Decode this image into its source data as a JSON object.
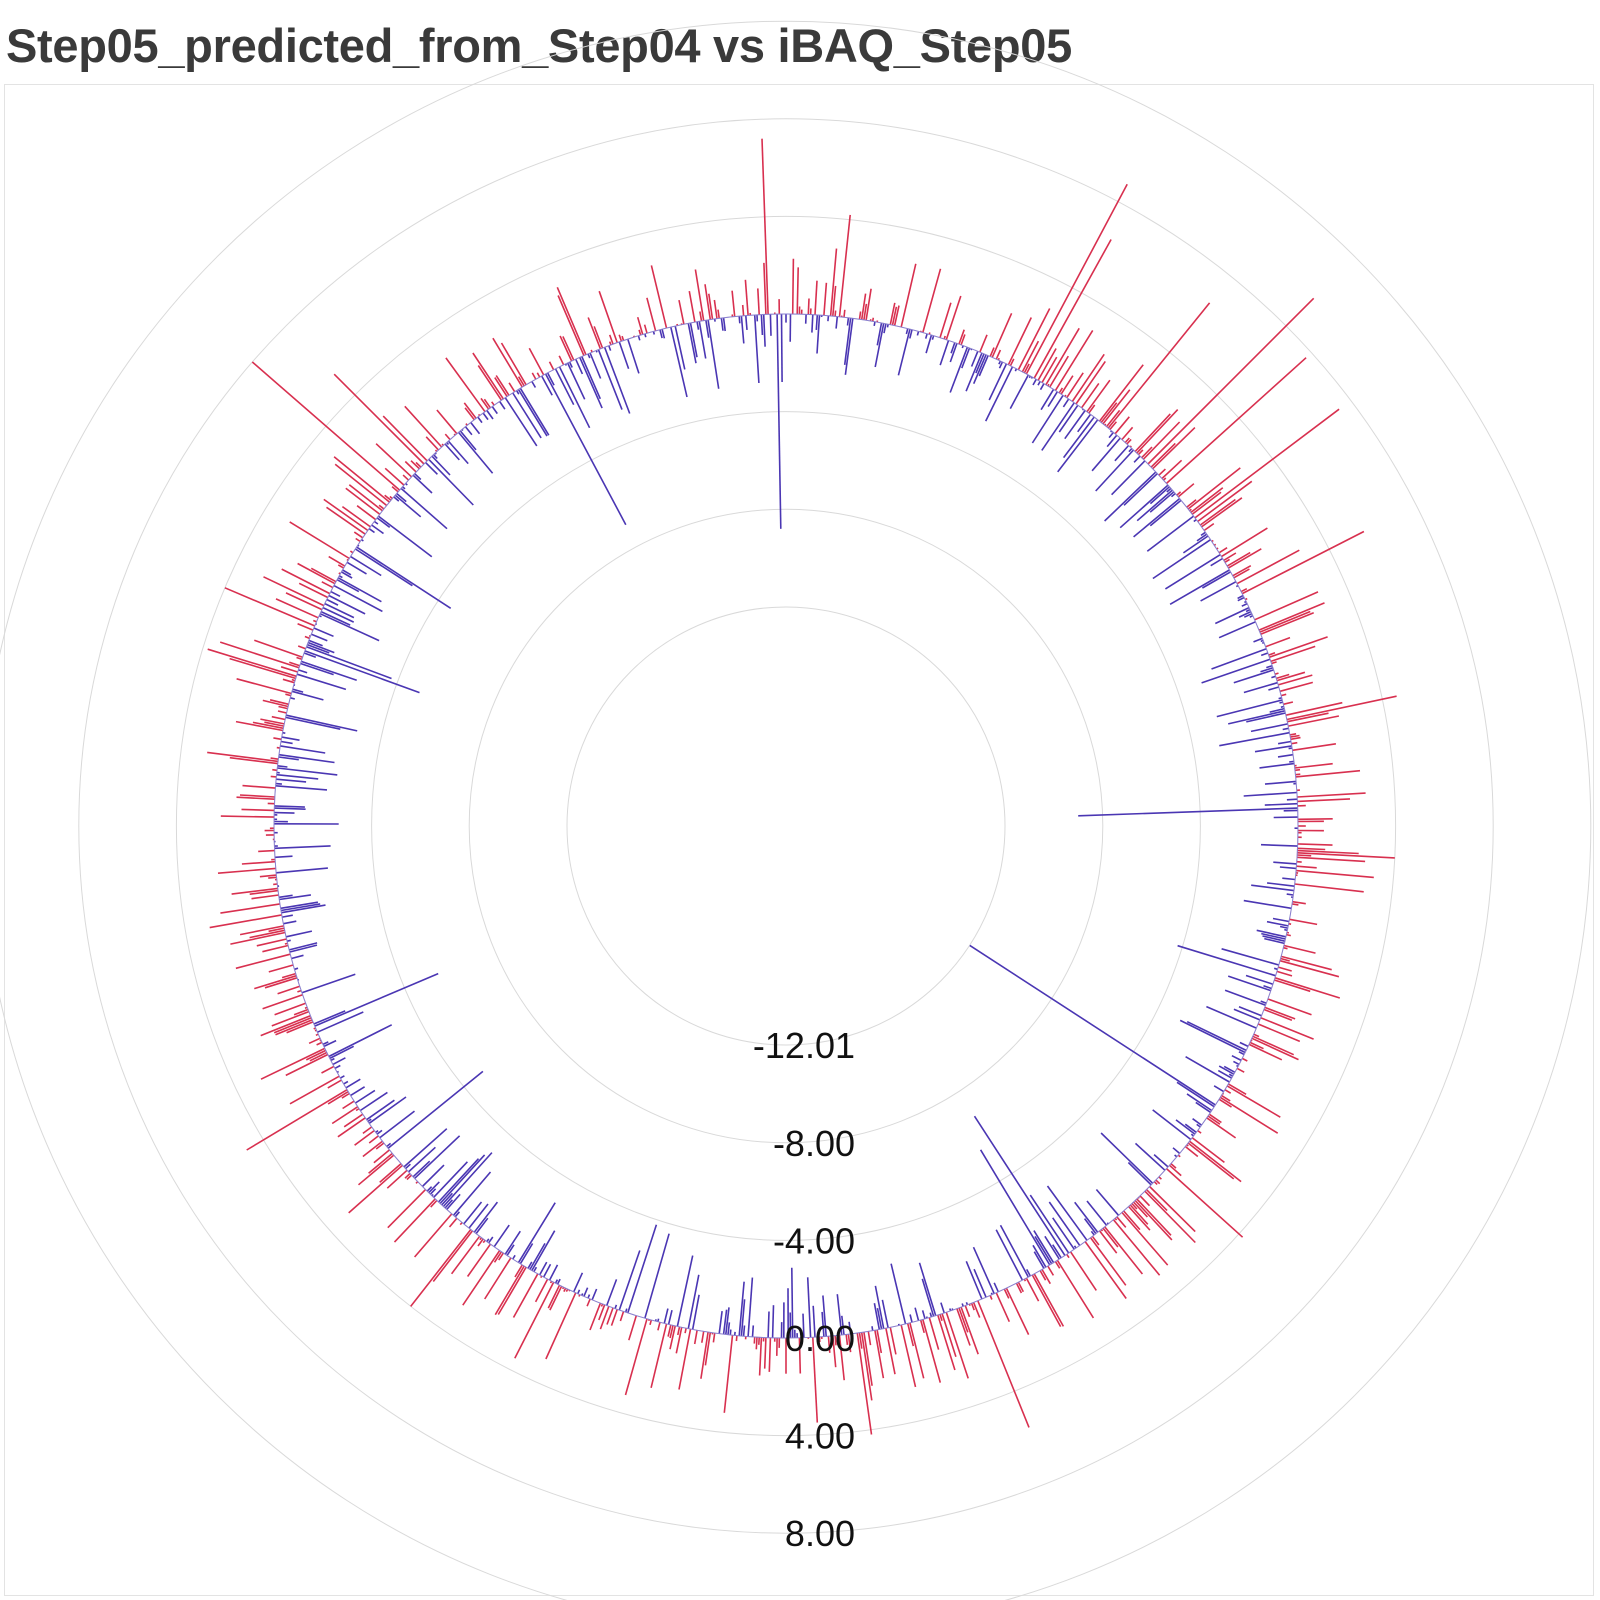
{
  "chart_data": {
    "type": "radial-bar",
    "title": "Step05_predicted_from_Step04 vs iBAQ_Step05",
    "rlim": [
      -12.01,
      12.0
    ],
    "r_tick_labels": [
      "-12.01",
      "-8.00",
      "-4.00",
      "0.00",
      "4.00",
      "8.00"
    ],
    "r_tick_values": [
      -12.01,
      -8.0,
      -4.0,
      0.0,
      4.0,
      8.0
    ],
    "grid": true,
    "n_points": 1440,
    "colors": {
      "positive": "#d8304f",
      "negative": "#4a36b3",
      "grid": "#d9d9d9",
      "baseline": "#8a7fd0"
    },
    "series": [
      {
        "color_rule": "value >= 0 → positive color, value < 0 → negative color",
        "highlighted_values": [
          {
            "angle_deg": 92,
            "value": 7.2
          },
          {
            "angle_deg": 91,
            "value": -8.8
          },
          {
            "angle_deg": 84,
            "value": 4.2
          },
          {
            "angle_deg": 62,
            "value": 8.8
          },
          {
            "angle_deg": 61,
            "value": 6.5
          },
          {
            "angle_deg": 51,
            "value": 6.6
          },
          {
            "angle_deg": 45,
            "value": 9.6
          },
          {
            "angle_deg": 42,
            "value": 7.7
          },
          {
            "angle_deg": 37,
            "value": 7.4
          },
          {
            "angle_deg": 27,
            "value": 5.6
          },
          {
            "angle_deg": 12,
            "value": 4.6
          },
          {
            "angle_deg": 2,
            "value": -9.0
          },
          {
            "angle_deg": -3,
            "value": 4.0
          },
          {
            "angle_deg": -5,
            "value": 3.2
          },
          {
            "angle_deg": -17,
            "value": -4.2
          },
          {
            "angle_deg": -33,
            "value": -12.0
          },
          {
            "angle_deg": -42,
            "value": 4.2
          },
          {
            "angle_deg": -57,
            "value": -6.8
          },
          {
            "angle_deg": -59,
            "value": -5.5
          },
          {
            "angle_deg": -68,
            "value": 5.6
          },
          {
            "angle_deg": -82,
            "value": 4.2
          },
          {
            "angle_deg": -87,
            "value": 3.5
          },
          {
            "angle_deg": -96,
            "value": 3.2
          },
          {
            "angle_deg": -106,
            "value": -3.6
          },
          {
            "angle_deg": -108,
            "value": -3.8
          },
          {
            "angle_deg": -117,
            "value": 3.5
          },
          {
            "angle_deg": -128,
            "value": 4.0
          },
          {
            "angle_deg": -141,
            "value": -5.0
          },
          {
            "angle_deg": -149,
            "value": 4.8
          },
          {
            "angle_deg": -157,
            "value": -5.5
          },
          {
            "angle_deg": -170,
            "value": 3.0
          },
          {
            "angle_deg": 157,
            "value": 4.0
          },
          {
            "angle_deg": 162,
            "value": 3.4
          },
          {
            "angle_deg": 163,
            "value": 3.8
          },
          {
            "angle_deg": 160,
            "value": -5.0
          },
          {
            "angle_deg": 147,
            "value": -4.6
          },
          {
            "angle_deg": 139,
            "value": 8.0
          },
          {
            "angle_deg": 135,
            "value": 5.2
          },
          {
            "angle_deg": 118,
            "value": -7.0
          },
          {
            "angle_deg": 113,
            "value": 3.0
          }
        ]
      }
    ]
  }
}
